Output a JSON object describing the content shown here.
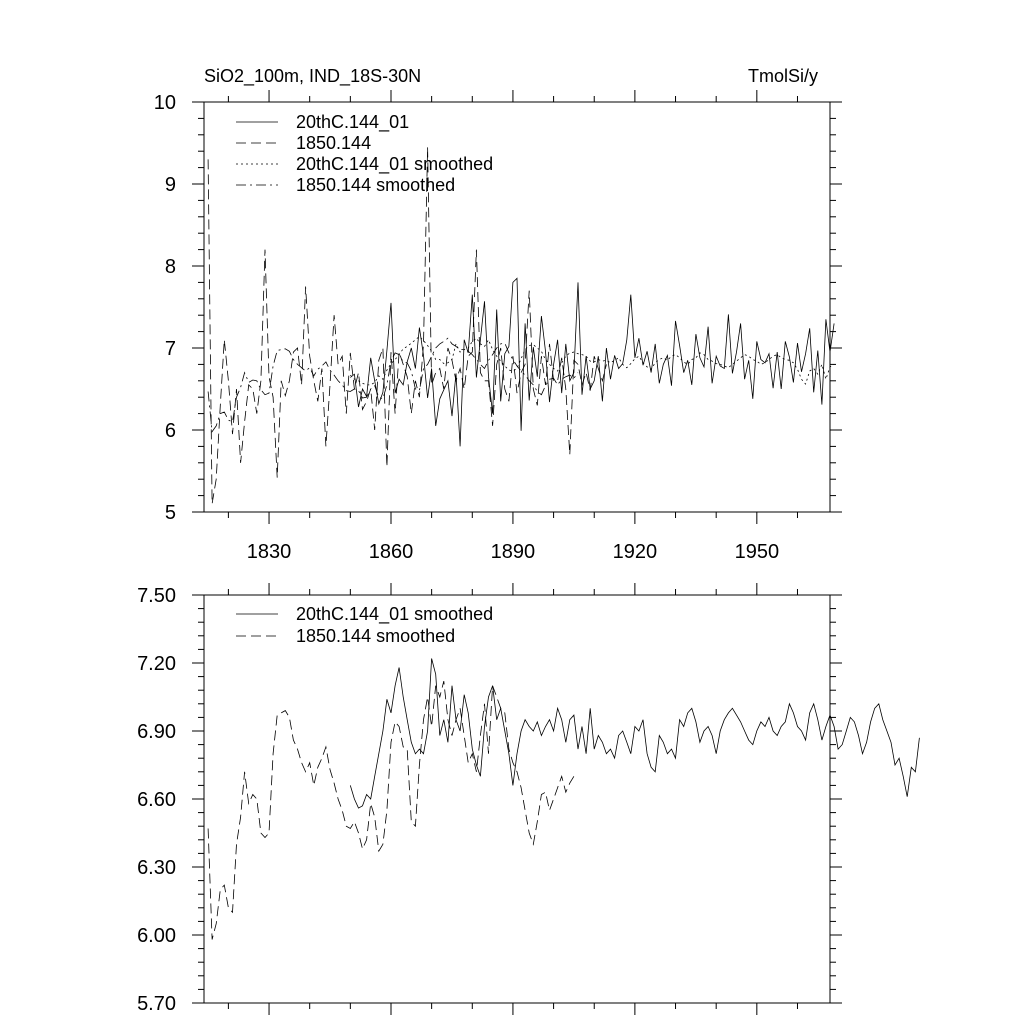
{
  "chart_data": [
    {
      "type": "line",
      "title_left": "SiO2_100m, IND_18S-30N",
      "title_right": "TmolSi/y",
      "xlabel": "",
      "ylabel": "",
      "xlim": [
        1814,
        1968
      ],
      "ylim": [
        5,
        10
      ],
      "x_ticks": [
        1830,
        1860,
        1890,
        1920,
        1950
      ],
      "x_tick_labels": [
        "1830",
        "1860",
        "1890",
        "1920",
        "1950"
      ],
      "y_ticks": [
        5,
        6,
        7,
        8,
        9,
        10
      ],
      "y_tick_labels": [
        "5",
        "6",
        "7",
        "8",
        "9",
        "10"
      ],
      "legend_position": "top-left",
      "series": [
        {
          "name": "20thC.144_01",
          "style": "solid",
          "x_start": 1850,
          "step": 1,
          "values": [
            6.64,
            6.68,
            6.28,
            6.5,
            6.41,
            6.88,
            6.6,
            6.32,
            6.46,
            6.97,
            7.55,
            6.45,
            6.62,
            6.55,
            6.83,
            7.0,
            6.75,
            7.25,
            6.91,
            6.39,
            6.75,
            6.05,
            6.38,
            6.49,
            6.6,
            6.17,
            6.69,
            5.8,
            7.1,
            6.94,
            7.65,
            6.64,
            7.1,
            7.57,
            6.65,
            6.2,
            7.47,
            6.35,
            6.93,
            7.02,
            7.8,
            7.85,
            5.99,
            7.3,
            6.36,
            7.01,
            6.65,
            7.39,
            6.96,
            6.34,
            6.8,
            7.1,
            6.45,
            7.05,
            6.6,
            6.7,
            7.8,
            6.43,
            6.9,
            6.5,
            6.6,
            6.9,
            6.35,
            7.0,
            6.62,
            6.91,
            6.75,
            6.81,
            7.1,
            7.65,
            6.88,
            7.12,
            6.79,
            6.96,
            6.7,
            7.05,
            6.57,
            6.8,
            6.91,
            6.54,
            7.33,
            7.03,
            6.7,
            6.85,
            6.55,
            7.17,
            6.88,
            6.77,
            7.26,
            6.57,
            6.9,
            6.78,
            6.75,
            7.41,
            6.69,
            6.95,
            7.3,
            6.62,
            6.85,
            6.38,
            7.08,
            6.86,
            6.82,
            6.93,
            6.51,
            6.95,
            6.5,
            7.08,
            6.89,
            6.58,
            7.06,
            6.71,
            6.93,
            7.24,
            6.46,
            6.97,
            6.31,
            7.35,
            6.95,
            7.3
          ]
        },
        {
          "name": "1850.144",
          "style": "dashed",
          "x_start": 1815,
          "step": 1,
          "values": [
            9.3,
            5.1,
            5.4,
            6.3,
            7.1,
            6.6,
            5.95,
            6.5,
            5.6,
            6.1,
            6.55,
            6.5,
            6.2,
            6.6,
            8.2,
            6.65,
            6.4,
            5.42,
            6.6,
            6.42,
            6.6,
            6.95,
            7.0,
            6.55,
            7.75,
            6.9,
            6.6,
            6.35,
            6.75,
            5.8,
            6.55,
            7.4,
            6.8,
            6.9,
            6.2,
            6.94,
            6.5,
            6.7,
            6.25,
            6.35,
            6.5,
            6.0,
            6.85,
            7.0,
            5.55,
            6.95,
            6.2,
            6.95,
            6.8,
            6.65,
            6.2,
            6.6,
            6.4,
            7.05,
            9.45,
            6.55,
            6.7,
            6.75,
            6.5,
            7.0,
            6.85,
            6.6,
            6.75,
            6.5,
            6.9,
            6.95,
            8.2,
            6.7,
            6.6,
            6.6,
            6.05,
            6.8,
            7.0,
            6.5,
            6.35,
            6.9,
            6.45,
            6.7,
            6.8,
            7.7,
            6.5,
            6.3,
            6.9,
            6.55,
            7.05,
            6.6,
            6.6,
            6.88,
            6.5,
            5.7,
            6.85,
            6.8,
            6.55,
            6.7,
            6.48,
            6.9,
            6.75,
            6.6,
            6.8
          ]
        },
        {
          "name": "20thC.144_01 smoothed",
          "style": "dotted",
          "x_start": 1850,
          "step": 1,
          "values": [
            6.67,
            6.62,
            6.6,
            6.57,
            6.55,
            6.55,
            6.58,
            6.66,
            6.62,
            6.73,
            6.81,
            6.86,
            6.92,
            6.99,
            7.02,
            7.06,
            7.1,
            7.14,
            7.09,
            7.03,
            6.96,
            6.86,
            6.86,
            6.81,
            6.82,
            6.86,
            7.05,
            6.95,
            6.98,
            7.0,
            7.08,
            7.12,
            7.05,
            7.02,
            7.1,
            6.98,
            6.9,
            6.84,
            6.78,
            6.73,
            6.72,
            6.75,
            6.87,
            6.98,
            7.03,
            7.04,
            7.0,
            6.96,
            6.86,
            6.8,
            6.75,
            6.72,
            6.82,
            6.9,
            6.94,
            6.95,
            6.93,
            6.92,
            6.9,
            6.84,
            6.83,
            6.86,
            6.84,
            6.85,
            6.82,
            6.85,
            6.88,
            6.8,
            6.76,
            6.81,
            6.87,
            6.9,
            6.82,
            6.77,
            6.74,
            6.82,
            6.86,
            6.88,
            6.85,
            6.9,
            6.92,
            6.88,
            6.83,
            6.8,
            6.86,
            6.88,
            6.94,
            6.92,
            6.86,
            6.84,
            6.81,
            6.8,
            6.78,
            6.76,
            6.8,
            6.84,
            6.88,
            6.92,
            6.9,
            6.86,
            6.84,
            6.8,
            6.82,
            6.86,
            6.9,
            6.92,
            6.88,
            6.86,
            6.85,
            6.82,
            6.74,
            6.62,
            6.56,
            6.72,
            6.75,
            6.68,
            6.8,
            6.62,
            6.77,
            6.8
          ]
        },
        {
          "name": "1850.144 smoothed",
          "style": "dashdot",
          "x_start": 1815,
          "step": 1,
          "values": [
            6.47,
            5.98,
            6.05,
            6.2,
            6.22,
            6.12,
            6.1,
            6.4,
            6.52,
            6.7,
            6.58,
            6.61,
            6.6,
            6.49,
            6.43,
            6.45,
            6.78,
            6.97,
            6.98,
            6.99,
            6.96,
            6.86,
            6.8,
            6.76,
            6.72,
            6.76,
            6.66,
            6.74,
            6.78,
            6.83,
            6.73,
            6.67,
            6.6,
            6.55,
            6.48,
            6.47,
            6.5,
            6.48,
            6.39,
            6.4,
            6.5,
            6.54,
            6.4,
            6.38,
            6.55,
            6.84,
            6.94,
            6.92,
            6.83,
            6.82,
            6.72,
            6.5,
            6.48,
            6.75,
            6.8,
            6.9,
            7.0,
            7.05,
            7.08,
            7.12,
            7.05,
            7.02,
            6.98,
            6.98,
            6.96,
            6.92,
            6.86,
            6.8,
            6.75,
            6.85,
            6.92,
            7.0,
            7.05,
            7.06,
            6.94,
            6.86,
            6.78,
            6.72,
            6.67,
            6.6,
            6.55,
            6.47,
            6.43,
            6.54,
            6.62,
            6.63,
            6.55,
            6.62,
            6.65,
            6.67,
            6.63,
            6.7
          ]
        }
      ]
    },
    {
      "type": "line",
      "title_left": "",
      "title_right": "",
      "xlabel": "",
      "ylabel": "",
      "xlim": [
        1814,
        1968
      ],
      "ylim": [
        5.7,
        7.5
      ],
      "x_ticks": [
        1830,
        1860,
        1890,
        1920,
        1950
      ],
      "x_tick_labels": [],
      "y_ticks": [
        5.7,
        6.0,
        6.3,
        6.6,
        6.9,
        7.2,
        7.5
      ],
      "y_tick_labels": [
        "5.70",
        "6.00",
        "6.30",
        "6.60",
        "6.90",
        "7.20",
        "7.50"
      ],
      "legend_position": "top-left",
      "series": [
        {
          "name": "20thC.144_01 smoothed",
          "style": "solid",
          "x_start": 1850,
          "step": 1,
          "values": [
            6.66,
            6.6,
            6.56,
            6.57,
            6.62,
            6.6,
            6.7,
            6.8,
            6.9,
            7.04,
            6.98,
            7.1,
            7.18,
            7.05,
            6.95,
            6.85,
            6.8,
            6.82,
            6.8,
            6.9,
            7.22,
            7.15,
            6.88,
            6.95,
            6.85,
            7.1,
            6.95,
            6.9,
            7.06,
            6.98,
            6.82,
            6.75,
            6.7,
            6.92,
            7.05,
            7.1,
            6.95,
            7.0,
            6.9,
            6.8,
            6.66,
            6.8,
            6.9,
            6.95,
            6.92,
            6.9,
            6.94,
            6.88,
            6.92,
            6.95,
            6.9,
            7.0,
            6.95,
            6.85,
            6.95,
            6.97,
            6.82,
            6.92,
            6.8,
            7.0,
            6.82,
            6.88,
            6.85,
            6.8,
            6.82,
            6.78,
            6.88,
            6.9,
            6.85,
            6.8,
            6.92,
            6.9,
            6.95,
            6.8,
            6.74,
            6.72,
            6.88,
            6.85,
            6.8,
            6.82,
            6.78,
            6.95,
            6.92,
            6.98,
            7.0,
            6.94,
            6.85,
            6.9,
            6.92,
            6.88,
            6.8,
            6.9,
            6.95,
            6.98,
            7.0,
            6.97,
            6.94,
            6.9,
            6.86,
            6.84,
            6.9,
            6.94,
            6.92,
            6.96,
            6.9,
            6.88,
            6.92,
            6.94,
            7.02,
            6.98,
            6.92,
            6.9,
            6.86,
            6.98,
            7.02,
            6.95,
            6.86,
            6.92,
            6.97,
            6.92,
            6.82,
            6.84,
            6.9,
            6.96,
            6.94,
            6.88,
            6.8,
            6.85,
            6.94,
            7.0,
            7.02,
            6.95,
            6.9,
            6.85,
            6.75,
            6.78,
            6.7,
            6.61,
            6.74,
            6.72,
            6.87
          ]
        },
        {
          "name": "1850.144 smoothed",
          "style": "dashed",
          "x_start": 1815,
          "step": 1,
          "values": [
            6.47,
            5.98,
            6.05,
            6.2,
            6.22,
            6.12,
            6.1,
            6.4,
            6.52,
            6.72,
            6.58,
            6.62,
            6.6,
            6.45,
            6.43,
            6.45,
            6.8,
            6.97,
            6.98,
            6.99,
            6.96,
            6.86,
            6.82,
            6.76,
            6.72,
            6.76,
            6.66,
            6.74,
            6.78,
            6.83,
            6.73,
            6.67,
            6.6,
            6.55,
            6.48,
            6.47,
            6.5,
            6.45,
            6.38,
            6.42,
            6.58,
            6.52,
            6.37,
            6.4,
            6.55,
            6.85,
            6.94,
            6.92,
            6.83,
            6.82,
            6.5,
            6.48,
            6.75,
            6.95,
            7.05,
            6.92,
            7.1,
            7.05,
            7.12,
            6.95,
            6.88,
            6.95,
            7.0,
            6.88,
            6.76,
            6.8,
            6.72,
            6.88,
            7.02,
            6.8,
            7.1,
            7.05,
            7.0,
            6.98,
            6.82,
            6.76,
            6.72,
            6.65,
            6.55,
            6.45,
            6.4,
            6.5,
            6.62,
            6.63,
            6.55,
            6.6,
            6.65,
            6.7,
            6.63,
            6.67,
            6.7
          ]
        }
      ]
    }
  ]
}
